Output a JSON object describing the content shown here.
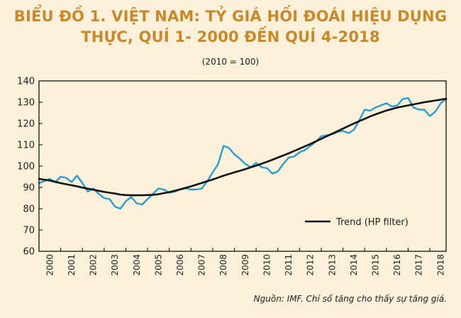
{
  "title_line1": "BIỂU ĐỒ 1. VIỆT NAM: TỶ GIÁ HỐI ĐOÁI HIỆU DỤNG",
  "title_line2": "THỰC, QUÍ 1- 2000 ĐẾN QUÍ 4-2018",
  "subtitle": "(2010 = 100)",
  "source": "Nguồn: IMF. Chỉ số tăng cho thấy sự tăng giá.",
  "colors": {
    "actual": "#2b9bd0",
    "trend": "#111111",
    "title": "#c9882a"
  },
  "chart_data": {
    "type": "line",
    "title": "BIỂU ĐỒ 1. VIỆT NAM: TỶ GIÁ HỐI ĐOÁI HIỆU DỤNG THỰC, QUÍ 1- 2000 ĐẾN QUÍ 4-2018",
    "subtitle": "(2010 = 100)",
    "xlabel": "",
    "ylabel": "",
    "ylim": [
      60,
      140
    ],
    "yticks": [
      60,
      70,
      80,
      90,
      100,
      110,
      120,
      130,
      140
    ],
    "xlim": [
      2000,
      2018.75
    ],
    "xticks": [
      "2000",
      "2001",
      "2002",
      "2003",
      "2004",
      "2005",
      "2006",
      "2007",
      "2008",
      "2009",
      "2010",
      "2011",
      "2012",
      "2013",
      "2014",
      "2015",
      "2016",
      "2017",
      "2018"
    ],
    "grid": false,
    "legend": {
      "position": "bottom-right",
      "entries": [
        "Trend (HP filter)"
      ]
    },
    "series": [
      {
        "name": "",
        "start": 2000,
        "step": 0.25,
        "values": [
          92,
          93,
          94,
          92.5,
          95,
          94.5,
          92.5,
          95.5,
          92,
          88,
          89.5,
          87,
          85,
          84.5,
          81,
          80,
          83.5,
          85.5,
          82.5,
          82,
          84.5,
          87,
          89.5,
          89,
          87.5,
          88,
          89,
          89.5,
          89,
          89,
          89.5,
          93,
          97,
          101,
          109.5,
          108.5,
          105.5,
          103.5,
          101,
          99.5,
          101.5,
          99.5,
          99,
          96.5,
          97.5,
          101,
          104,
          104.5,
          106.5,
          107.5,
          109.5,
          111.5,
          114,
          114.5,
          115,
          116,
          116.5,
          115.5,
          117,
          121.5,
          126.5,
          126,
          127.5,
          128.5,
          129.5,
          128,
          128.5,
          131.5,
          132,
          127.5,
          126.5,
          126.5,
          123.5,
          125.5,
          129.5,
          131.5
        ]
      },
      {
        "name": "Trend (HP filter)",
        "start": 2000,
        "step": 0.25,
        "values": [
          94,
          93.6,
          93.2,
          92.6,
          92,
          91.5,
          91,
          90.5,
          89.9,
          89.4,
          88.9,
          88.4,
          87.9,
          87.5,
          87.1,
          86.6,
          86.4,
          86.3,
          86.3,
          86.3,
          86.4,
          86.5,
          86.8,
          87.3,
          87.8,
          88.4,
          89.1,
          89.8,
          90.5,
          91.3,
          92.1,
          92.9,
          93.7,
          94.6,
          95.5,
          96.3,
          97.1,
          97.8,
          98.6,
          99.4,
          100.2,
          101.1,
          102,
          103,
          104,
          105,
          106,
          107.1,
          108.2,
          109.3,
          110.4,
          111.6,
          112.8,
          114,
          115.2,
          116.4,
          117.6,
          118.8,
          120,
          121.1,
          122.2,
          123.3,
          124.3,
          125.2,
          126.1,
          126.8,
          127.5,
          128,
          128.5,
          129,
          129.5,
          130,
          130.4,
          130.8,
          131.2,
          131.6
        ]
      }
    ]
  }
}
